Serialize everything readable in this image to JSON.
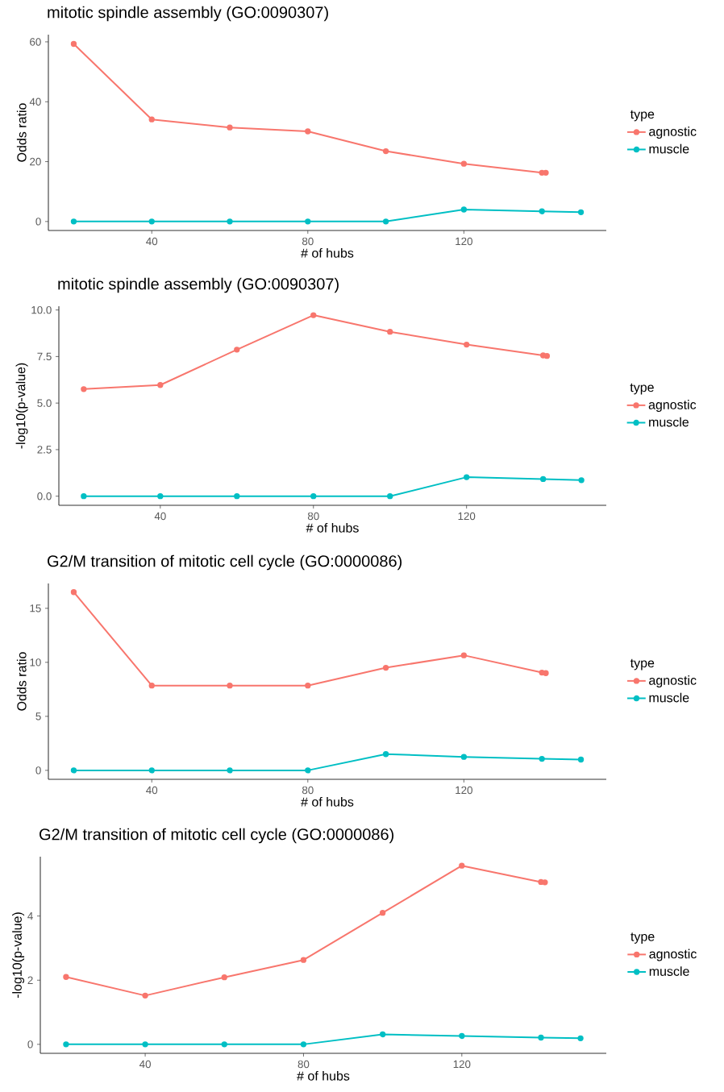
{
  "chart_data": [
    {
      "type": "line",
      "title": "mitotic spindle assembly (GO:0090307)",
      "xlabel": "# of hubs",
      "ylabel": "Odds ratio",
      "legend_title": "type",
      "legend": "right",
      "marker": "circle",
      "line_style": "solid",
      "xlim": [
        13.5,
        156.5
      ],
      "ylim": [
        -3,
        62.4
      ],
      "xticks": [
        40,
        80,
        120
      ],
      "yticks": [
        0,
        20,
        40,
        60
      ],
      "series": [
        {
          "name": "agnostic",
          "color": "#f8766d",
          "x": [
            20,
            40,
            60,
            80,
            100,
            120,
            140,
            141
          ],
          "values": [
            59.3,
            34.1,
            31.4,
            30.1,
            23.5,
            19.3,
            16.3,
            16.3
          ]
        },
        {
          "name": "muscle",
          "color": "#00bfc4",
          "x": [
            20,
            40,
            60,
            80,
            100,
            120,
            140,
            150
          ],
          "values": [
            0,
            0,
            0,
            0,
            0,
            4.0,
            3.4,
            3.1
          ]
        }
      ]
    },
    {
      "type": "line",
      "title": "mitotic spindle assembly (GO:0090307)",
      "xlabel": "# of hubs",
      "ylabel": "-log10(p-value)",
      "legend_title": "type",
      "legend": "right",
      "marker": "circle",
      "line_style": "solid",
      "xlim": [
        13.5,
        156.5
      ],
      "ylim": [
        -0.49,
        10.2
      ],
      "xticks": [
        40,
        80,
        120
      ],
      "yticks": [
        {
          "value": 0,
          "label": "0.0"
        },
        2.5,
        {
          "value": 5,
          "label": "5.0"
        },
        7.5,
        {
          "value": 10,
          "label": "10.0"
        }
      ],
      "series": [
        {
          "name": "agnostic",
          "color": "#f8766d",
          "x": [
            20,
            40,
            60,
            80,
            100,
            120,
            140,
            141
          ],
          "values": [
            5.75,
            5.97,
            7.87,
            9.72,
            8.83,
            8.14,
            7.56,
            7.53
          ]
        },
        {
          "name": "muscle",
          "color": "#00bfc4",
          "x": [
            20,
            40,
            60,
            80,
            100,
            120,
            140,
            150
          ],
          "values": [
            0,
            0,
            0,
            0,
            0,
            1.02,
            0.92,
            0.86
          ]
        }
      ]
    },
    {
      "type": "line",
      "title": "G2/M transition of mitotic cell cycle (GO:0000086)",
      "xlabel": "# of hubs",
      "ylabel": "Odds ratio",
      "legend_title": "type",
      "legend": "right",
      "marker": "circle",
      "line_style": "solid",
      "xlim": [
        13.5,
        156.5
      ],
      "ylim": [
        -0.83,
        17.3
      ],
      "xticks": [
        40,
        80,
        120
      ],
      "yticks": [
        0,
        5,
        10,
        15
      ],
      "series": [
        {
          "name": "agnostic",
          "color": "#f8766d",
          "x": [
            20,
            40,
            60,
            80,
            100,
            120,
            140,
            141
          ],
          "values": [
            16.5,
            7.85,
            7.85,
            7.85,
            9.5,
            10.65,
            9.05,
            9.0
          ]
        },
        {
          "name": "muscle",
          "color": "#00bfc4",
          "x": [
            20,
            40,
            60,
            80,
            100,
            120,
            140,
            150
          ],
          "values": [
            0,
            0,
            0,
            0,
            1.5,
            1.25,
            1.07,
            1.0
          ]
        }
      ]
    },
    {
      "type": "line",
      "title": "G2/M transition of mitotic cell cycle (GO:0000086)",
      "xlabel": "# of hubs",
      "ylabel": "-log10(p-value)",
      "legend_title": "type",
      "legend": "right",
      "marker": "circle",
      "line_style": "solid",
      "xlim": [
        13.5,
        156.5
      ],
      "ylim": [
        -0.28,
        5.85
      ],
      "xticks": [
        40,
        80,
        120
      ],
      "yticks": [
        0,
        2,
        4
      ],
      "series": [
        {
          "name": "agnostic",
          "color": "#f8766d",
          "x": [
            20,
            40,
            60,
            80,
            100,
            120,
            140,
            141
          ],
          "values": [
            2.1,
            1.52,
            2.09,
            2.63,
            4.1,
            5.57,
            5.06,
            5.05
          ]
        },
        {
          "name": "muscle",
          "color": "#00bfc4",
          "x": [
            20,
            40,
            60,
            80,
            100,
            120,
            140,
            150
          ],
          "values": [
            0,
            0,
            0,
            0,
            0.31,
            0.26,
            0.21,
            0.19
          ]
        }
      ]
    }
  ]
}
